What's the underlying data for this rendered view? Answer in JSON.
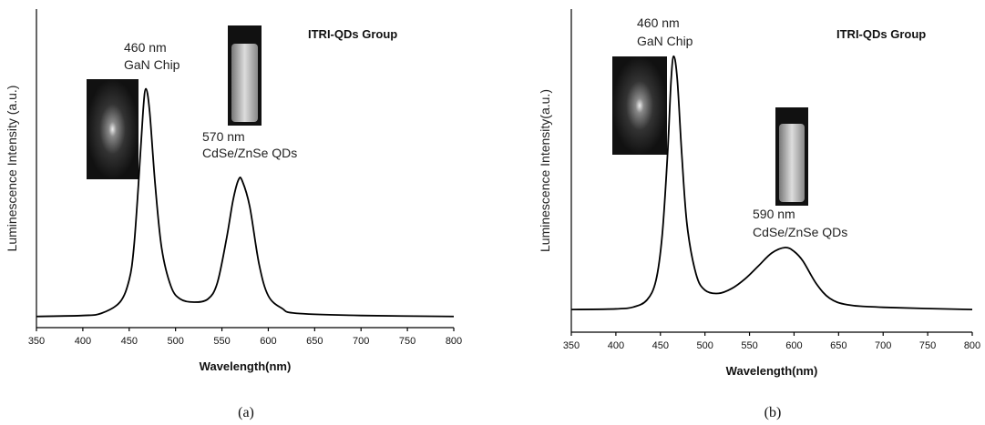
{
  "chart_data": [
    {
      "type": "line",
      "label": "ITRI-QDs Group",
      "annotations": [
        "460 nm",
        "GaN Chip",
        "570 nm",
        "CdSe/ZnSe QDs"
      ],
      "x_label": "Wavelength(nm)",
      "y_label": "Luminescence Intensity (a.u.)",
      "caption": "(a)",
      "xlim": [
        350,
        800
      ],
      "xticks": [
        350,
        400,
        450,
        500,
        550,
        600,
        650,
        700,
        750,
        800
      ],
      "ylim": [
        0,
        100
      ],
      "series": [
        {
          "color": "#000000",
          "x": [
            350,
            400,
            420,
            440,
            450,
            455,
            460,
            465,
            468,
            472,
            478,
            485,
            495,
            505,
            520,
            535,
            545,
            555,
            562,
            568,
            572,
            580,
            590,
            600,
            615,
            630,
            700,
            800
          ],
          "values": [
            3.5,
            3.8,
            4.5,
            8,
            15,
            25,
            45,
            68,
            75,
            68,
            45,
            25,
            13,
            9,
            8,
            9,
            14,
            28,
            40,
            46.5,
            46,
            38,
            20,
            10,
            6,
            4.5,
            3.8,
            3.5
          ]
        }
      ]
    },
    {
      "type": "line",
      "label": "ITRI-QDs Group",
      "annotations": [
        "460 nm",
        "GaN Chip",
        "590 nm",
        "CdSe/ZnSe QDs"
      ],
      "x_label": "Wavelength(nm)",
      "y_label": "Luminescence Intensity(a.u.)",
      "caption": "(b)",
      "xlim": [
        350,
        800
      ],
      "xticks": [
        350,
        400,
        450,
        500,
        550,
        600,
        650,
        700,
        750,
        800
      ],
      "ylim": [
        0,
        100
      ],
      "series": [
        {
          "color": "#000000",
          "x": [
            350,
            400,
            420,
            435,
            445,
            452,
            458,
            462,
            465,
            469,
            474,
            480,
            490,
            500,
            515,
            530,
            545,
            560,
            575,
            590,
            600,
            610,
            625,
            640,
            660,
            700,
            800
          ],
          "values": [
            7,
            7.2,
            7.8,
            10,
            16,
            30,
            55,
            78,
            85.4,
            78,
            55,
            33,
            18,
            13,
            12,
            13.5,
            16.5,
            20.5,
            24.5,
            26.2,
            25,
            22,
            15,
            10.5,
            8.5,
            7.7,
            7
          ]
        }
      ]
    }
  ]
}
